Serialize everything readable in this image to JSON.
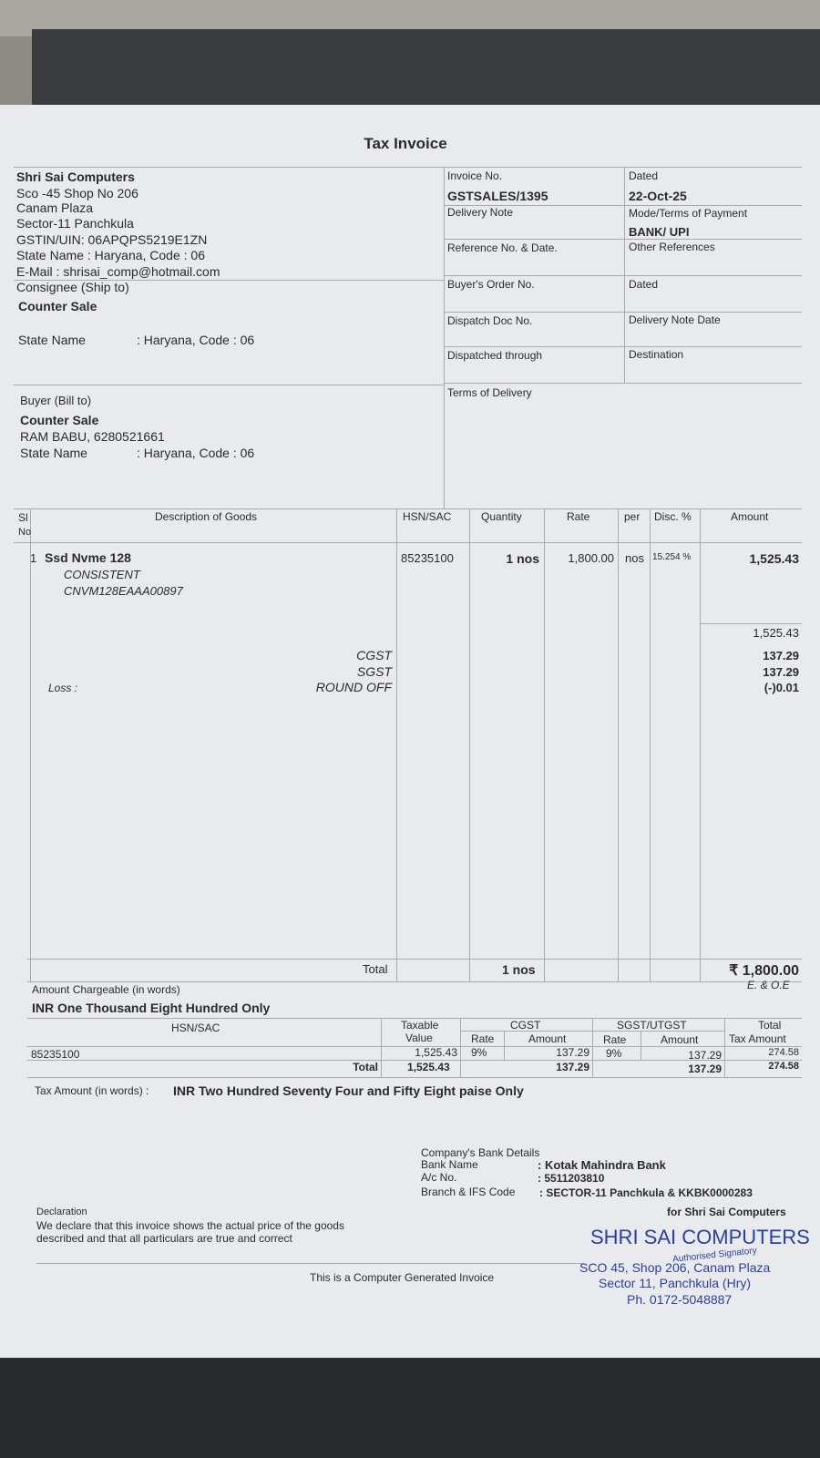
{
  "title": "Tax Invoice",
  "seller": {
    "name": "Shri Sai Computers",
    "lines": [
      "Sco -45 Shop No 206",
      "Canam Plaza",
      "Sector-11 Panchkula",
      "GSTIN/UIN: 06APQPS5219E1ZN",
      "State Name :  Haryana, Code : 06",
      "E-Mail : shrisai_comp@hotmail.com"
    ]
  },
  "consignee": {
    "label": "Consignee (Ship to)",
    "name": "Counter Sale",
    "state_label": "State Name",
    "state_value": ": Haryana, Code : 06"
  },
  "buyer": {
    "label": "Buyer (Bill to)",
    "name": "Counter Sale",
    "contact": "RAM BABU, 6280521661",
    "state_label": "State Name",
    "state_value": ": Haryana, Code : 06"
  },
  "meta": {
    "invoice_no_label": "Invoice No.",
    "invoice_no": "GSTSALES/1395",
    "dated_label": "Dated",
    "dated": "22-Oct-25",
    "delivery_note_label": "Delivery Note",
    "payment_label": "Mode/Terms of Payment",
    "payment": "BANK/ UPI",
    "reference_label": "Reference No. & Date.",
    "other_ref_label": "Other References",
    "buyer_order_label": "Buyer's Order No.",
    "dated2_label": "Dated",
    "dispatch_doc_label": "Dispatch Doc No.",
    "delivery_note_date_label": "Delivery Note Date",
    "dispatched_through_label": "Dispatched through",
    "destination_label": "Destination",
    "terms_label": "Terms of Delivery"
  },
  "items": {
    "headers": {
      "sl": "Sl",
      "sl2": "No",
      "desc": "Description of Goods",
      "hsn": "HSN/SAC",
      "qty": "Quantity",
      "rate": "Rate",
      "per": "per",
      "disc": "Disc. %",
      "amount": "Amount"
    },
    "rows": [
      {
        "sl": "1",
        "name": "Ssd Nvme 128",
        "brand": "CONSISTENT",
        "serial": "CNVM128EAAA00897",
        "hsn": "85235100",
        "qty": "1 nos",
        "rate": "1,800.00",
        "per": "nos",
        "disc": "15.254 %",
        "amount": "1,525.43"
      }
    ],
    "subtotal": "1,525.43",
    "cgst_label": "CGST",
    "cgst": "137.29",
    "sgst_label": "SGST",
    "sgst": "137.29",
    "loss_label": "Loss :",
    "roundoff_label": "ROUND OFF",
    "roundoff": "(-)0.01",
    "total_label": "Total",
    "total_qty": "1 nos",
    "total": "₹ 1,800.00"
  },
  "amount_words_label": "Amount Chargeable (in words)",
  "eoe": "E. & O.E",
  "amount_words": "INR One Thousand Eight Hundred Only",
  "hsn_table": {
    "h_hsn": "HSN/SAC",
    "h_taxable": "Taxable",
    "h_value": "Value",
    "h_cgst": "CGST",
    "h_sgst": "SGST/UTGST",
    "h_rate": "Rate",
    "h_amount": "Amount",
    "h_total": "Total",
    "h_taxamt": "Tax Amount",
    "row": {
      "hsn": "85235100",
      "taxable": "1,525.43",
      "cgst_rate": "9%",
      "cgst_amt": "137.29",
      "sgst_rate": "9%",
      "sgst_amt": "137.29",
      "total": "274.58"
    },
    "total": {
      "label": "Total",
      "taxable": "1,525.43",
      "cgst_amt": "137.29",
      "sgst_amt": "137.29",
      "total": "274.58"
    }
  },
  "tax_words_label": "Tax Amount (in words)  :",
  "tax_words": "INR Two Hundred Seventy Four and Fifty Eight paise Only",
  "bank": {
    "title": "Company's Bank Details",
    "name_label": "Bank Name",
    "name": ": Kotak Mahindra Bank",
    "ac_label": "A/c No.",
    "ac": ": 5511203810",
    "branch_label": "Branch & IFS Code",
    "branch": ": SECTOR-11 Panchkula & KKBK0000283"
  },
  "declaration": {
    "label": "Declaration",
    "text1": "We declare that this invoice shows the actual price of the goods",
    "text2": "described and that all particulars are true and correct"
  },
  "for_company": "for Shri Sai Computers",
  "stamp": {
    "name": "SHRI SAI COMPUTERS",
    "addr1": "SCO 45, Shop 206, Canam Plaza",
    "addr2": "Sector 11, Panchkula (Hry)",
    "phone": "Ph. 0172-5048887",
    "signatory": "Authorised Signatory",
    "color": "#2a3fa3"
  },
  "footer": "This is a Computer Generated Invoice"
}
